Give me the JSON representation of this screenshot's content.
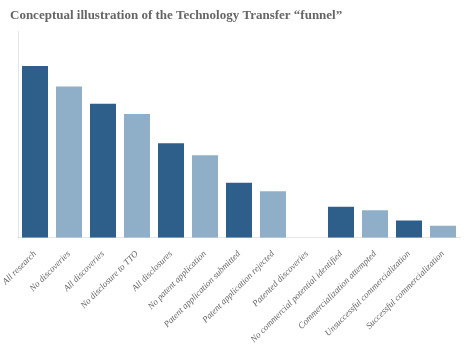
{
  "chart_data": {
    "type": "bar",
    "title": "Conceptual illustration of the Technology Transfer “funnel”",
    "categories": [
      "All research",
      "No discoveries",
      "All discoveries",
      "No disclosure to TTO",
      "All disclosures",
      "No patent application",
      "Patent application submitted",
      "Patent application rejected",
      "Patented discoveries",
      "No commercial potential identified",
      "Commercialization attempted",
      "Unsuccessful commercialization",
      "Successful commercialization"
    ],
    "values": [
      100,
      88,
      78,
      72,
      55,
      48,
      32,
      27,
      null,
      18,
      16,
      10,
      7
    ],
    "colors": [
      "#2E5F8A",
      "#8FAFC8",
      "#2E5F8A",
      "#8FAFC8",
      "#2E5F8A",
      "#8FAFC8",
      "#2E5F8A",
      "#8FAFC8",
      null,
      "#2E5F8A",
      "#8FAFC8",
      "#2E5F8A",
      "#8FAFC8"
    ],
    "ylim": [
      0,
      120
    ],
    "grid": false,
    "tick_labels": "x"
  }
}
